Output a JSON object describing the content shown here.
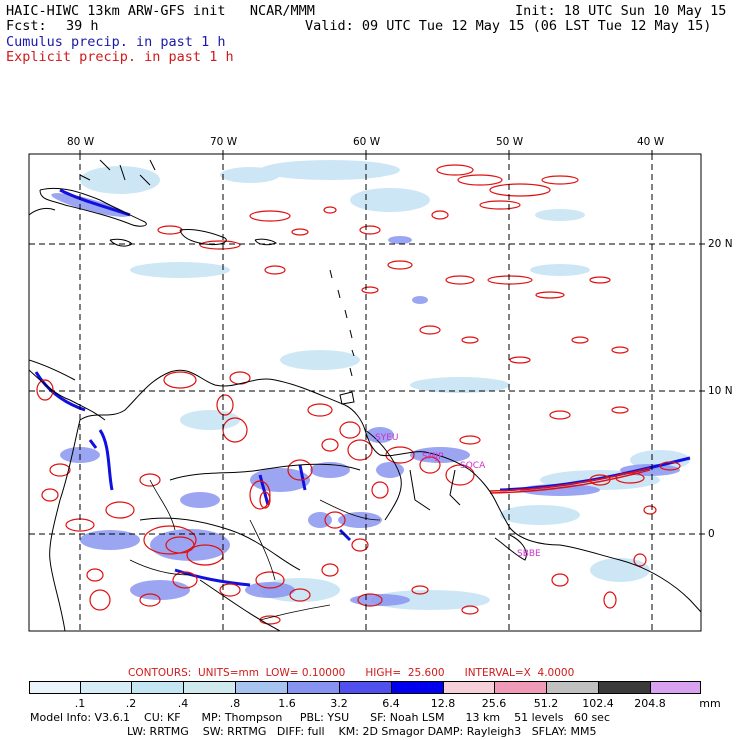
{
  "header": {
    "model": "HAIC-HIWC 13km ARW-GFS init   NCAR/MMM",
    "init": "Init: 18 UTC Sun 10 May 15",
    "fcst_label": "Fcst:",
    "fcst_value": "39 h",
    "valid": "Valid: 09 UTC Tue 12 May 15 (06 LST Tue 12 May 15)",
    "cumulus_legend": "Cumulus precip. in past 1 h",
    "explicit_legend": "Explicit precip. in past 1 h"
  },
  "map": {
    "lon_labels": [
      "80 W",
      "70 W",
      "60 W",
      "50 W",
      "40 W"
    ],
    "lat_labels": [
      "20 N",
      "10 N",
      "0"
    ],
    "stations": [
      "SYEU",
      "SMJP",
      "SOCA",
      "SBBE"
    ],
    "colors": {
      "cumulus": "#1f1fe8",
      "explicit": "#e01010",
      "coast": "#000000",
      "station": "#cc33cc"
    }
  },
  "contours": {
    "label": "CONTOURS:  UNITS=mm  LOW= 0.10000      HIGH=  25.600      INTERVAL=X  4.0000"
  },
  "colorbar": {
    "ticks": [
      ".1",
      ".2",
      ".4",
      ".8",
      "1.6",
      "3.2",
      "6.4",
      "12.8",
      "25.6",
      "51.2",
      "102.4",
      "204.8"
    ],
    "unit": "mm",
    "colors": [
      "#ffffff",
      "#eaf4fb",
      "#d6ecf7",
      "#c4e6f2",
      "#cfe9ee",
      "#a7c4f0",
      "#8793f0",
      "#5050ee",
      "#0000ee",
      "#f6d0d8",
      "#f19ab8",
      "#c0c0c0",
      "#3a3a3a",
      "#d8a2f0"
    ]
  },
  "footer": {
    "line1": "Model Info: V3.6.1    CU: KF      MP: Thompson     PBL: YSU      SF: Noah LSM      13 km    51 levels   60 sec",
    "line2": "LW: RRTMG    SW: RRTMG   DIFF: full    KM: 2D Smagor DAMP: Rayleigh3   SFLAY: MM5"
  }
}
